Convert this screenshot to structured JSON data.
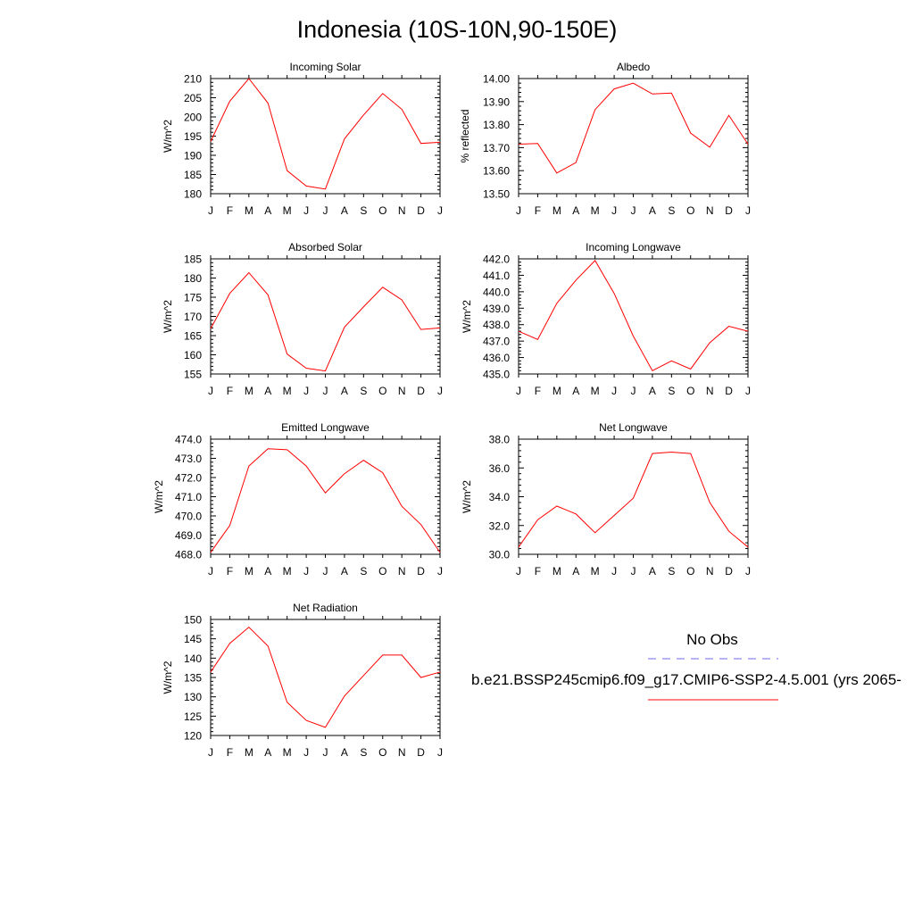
{
  "title": "Indonesia (10S-10N,90-150E)",
  "legend": {
    "obs_label": "No Obs",
    "model_label": "b.e21.BSSP245cmip6.f09_g17.CMIP6-SSP2-4.5.001 (yrs 2065-",
    "obs_color": "#6b6bf0",
    "model_color": "#ff0000"
  },
  "month_labels": [
    "J",
    "F",
    "M",
    "A",
    "M",
    "J",
    "J",
    "A",
    "S",
    "O",
    "N",
    "D",
    "J"
  ],
  "chart_data": [
    {
      "type": "line",
      "title": "Incoming Solar",
      "ylabel": "W/m^2",
      "ylim": [
        180,
        210
      ],
      "yticks": [
        180,
        185,
        190,
        195,
        200,
        205,
        210
      ],
      "tick_decimals": 0,
      "x": [
        "J",
        "F",
        "M",
        "A",
        "M",
        "J",
        "J",
        "A",
        "S",
        "O",
        "N",
        "D",
        "J"
      ],
      "series": [
        {
          "values": [
            193.6,
            204.1,
            210.0,
            203.6,
            186.0,
            182.0,
            181.2,
            194.3,
            200.5,
            206.1,
            202.0,
            193.1,
            193.4
          ]
        }
      ]
    },
    {
      "type": "line",
      "title": "Albedo",
      "ylabel": "% reflected",
      "ylim": [
        13.5,
        14.0
      ],
      "yticks": [
        13.5,
        13.6,
        13.7,
        13.8,
        13.9,
        14.0
      ],
      "tick_decimals": 2,
      "x": [
        "J",
        "F",
        "M",
        "A",
        "M",
        "J",
        "J",
        "A",
        "S",
        "O",
        "N",
        "D",
        "J"
      ],
      "series": [
        {
          "values": [
            13.715,
            13.718,
            13.59,
            13.635,
            13.865,
            13.955,
            13.98,
            13.933,
            13.937,
            13.763,
            13.702,
            13.84,
            13.715
          ]
        }
      ]
    },
    {
      "type": "line",
      "title": "Absorbed Solar",
      "ylabel": "W/m^2",
      "ylim": [
        155,
        185
      ],
      "yticks": [
        155,
        160,
        165,
        170,
        175,
        180,
        185
      ],
      "tick_decimals": 0,
      "x": [
        "J",
        "F",
        "M",
        "A",
        "M",
        "J",
        "J",
        "A",
        "S",
        "O",
        "N",
        "D",
        "J"
      ],
      "series": [
        {
          "values": [
            166.8,
            176.0,
            181.4,
            175.6,
            160.2,
            156.5,
            155.8,
            167.2,
            172.5,
            177.6,
            174.3,
            166.6,
            167.0
          ]
        }
      ]
    },
    {
      "type": "line",
      "title": "Incoming Longwave",
      "ylabel": "W/m^2",
      "ylim": [
        435.0,
        442.0
      ],
      "yticks": [
        435.0,
        436.0,
        437.0,
        438.0,
        439.0,
        440.0,
        441.0,
        442.0
      ],
      "tick_decimals": 1,
      "x": [
        "J",
        "F",
        "M",
        "A",
        "M",
        "J",
        "J",
        "A",
        "S",
        "O",
        "N",
        "D",
        "J"
      ],
      "series": [
        {
          "values": [
            437.6,
            437.1,
            439.3,
            440.7,
            441.9,
            439.9,
            437.3,
            435.2,
            435.8,
            435.3,
            436.9,
            437.9,
            437.6
          ]
        }
      ]
    },
    {
      "type": "line",
      "title": "Emitted Longwave",
      "ylabel": "W/m^2",
      "ylim": [
        468.0,
        474.0
      ],
      "yticks": [
        468.0,
        469.0,
        470.0,
        471.0,
        472.0,
        473.0,
        474.0
      ],
      "tick_decimals": 1,
      "x": [
        "J",
        "F",
        "M",
        "A",
        "M",
        "J",
        "J",
        "A",
        "S",
        "O",
        "N",
        "D",
        "J"
      ],
      "series": [
        {
          "values": [
            468.1,
            469.5,
            472.6,
            473.5,
            473.45,
            472.6,
            471.2,
            472.2,
            472.9,
            472.25,
            470.5,
            469.55,
            468.1
          ]
        }
      ]
    },
    {
      "type": "line",
      "title": "Net Longwave",
      "ylabel": "W/m^2",
      "ylim": [
        30.0,
        38.0
      ],
      "yticks": [
        30.0,
        32.0,
        34.0,
        36.0,
        38.0
      ],
      "tick_decimals": 1,
      "x": [
        "J",
        "F",
        "M",
        "A",
        "M",
        "J",
        "J",
        "A",
        "S",
        "O",
        "N",
        "D",
        "J"
      ],
      "series": [
        {
          "values": [
            30.5,
            32.4,
            33.35,
            32.8,
            31.5,
            32.7,
            33.9,
            37.0,
            37.1,
            37.0,
            33.6,
            31.6,
            30.5
          ]
        }
      ]
    },
    {
      "type": "line",
      "title": "Net Radiation",
      "ylabel": "W/m^2",
      "ylim": [
        120,
        150
      ],
      "yticks": [
        120,
        125,
        130,
        135,
        140,
        145,
        150
      ],
      "tick_decimals": 0,
      "x": [
        "J",
        "F",
        "M",
        "A",
        "M",
        "J",
        "J",
        "A",
        "S",
        "O",
        "N",
        "D",
        "J"
      ],
      "series": [
        {
          "values": [
            136.4,
            143.8,
            148.0,
            143.1,
            128.6,
            123.9,
            122.1,
            130.2,
            135.5,
            140.8,
            140.8,
            135.0,
            136.4
          ]
        }
      ]
    }
  ]
}
